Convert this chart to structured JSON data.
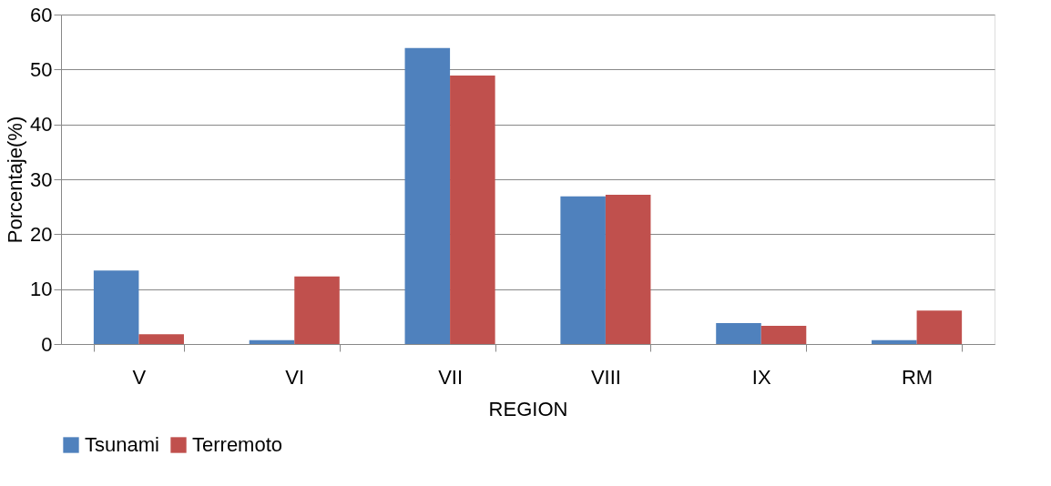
{
  "chart_data": {
    "type": "bar",
    "xlabel": "REGION",
    "ylabel": "Porcentaje(%)",
    "categories": [
      "V",
      "VI",
      "VII",
      "VIII",
      "IX",
      "RM"
    ],
    "series": [
      {
        "name": "Tsunami",
        "color": "#4f81bd",
        "values": [
          13.4,
          0.7,
          53.9,
          26.9,
          3.8,
          0.7
        ]
      },
      {
        "name": "Terremoto",
        "color": "#c0504d",
        "values": [
          1.8,
          12.3,
          48.9,
          27.2,
          3.3,
          6.1
        ]
      }
    ],
    "ylim": [
      0,
      60
    ],
    "yticks": [
      0,
      10,
      20,
      30,
      40,
      50,
      60
    ],
    "grid": "y",
    "legend": "bottom"
  }
}
